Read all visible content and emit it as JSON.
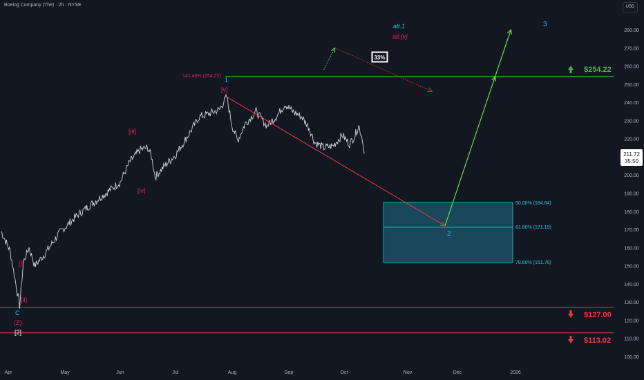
{
  "header": {
    "title": "Boeing Company (The) · 2h · NYSE"
  },
  "currency_button": "USD",
  "chart_data": {
    "type": "line",
    "title": "Boeing Company (The) · 2h · NYSE",
    "x_ticks": [
      "Apr",
      "May",
      "Jun",
      "Jul",
      "Aug",
      "Sep",
      "Oct",
      "Nov",
      "Dec",
      "2026"
    ],
    "y_ticks": [
      100,
      110,
      120,
      130,
      140,
      150,
      160,
      170,
      180,
      190,
      200,
      210,
      220,
      230,
      240,
      250,
      260,
      270,
      280
    ],
    "ylim": [
      96,
      288
    ],
    "price_anchors": [
      {
        "x": "Mar 28",
        "y": 169
      },
      {
        "x": "Apr 2",
        "y": 158
      },
      {
        "x": "Apr 5",
        "y": 140
      },
      {
        "x": "Apr 7",
        "y": 128
      },
      {
        "x": "Apr 9",
        "y": 152
      },
      {
        "x": "Apr 12",
        "y": 160
      },
      {
        "x": "Apr 15",
        "y": 150
      },
      {
        "x": "Apr 20",
        "y": 156
      },
      {
        "x": "Apr 28",
        "y": 168
      },
      {
        "x": "May 6",
        "y": 176
      },
      {
        "x": "May 12",
        "y": 181
      },
      {
        "x": "May 20",
        "y": 187
      },
      {
        "x": "Jun 1",
        "y": 196
      },
      {
        "x": "Jun 6",
        "y": 207
      },
      {
        "x": "Jun 12",
        "y": 214
      },
      {
        "x": "Jun 16",
        "y": 215
      },
      {
        "x": "Jun 18",
        "y": 210
      },
      {
        "x": "Jun 20",
        "y": 199
      },
      {
        "x": "Jun 25",
        "y": 205
      },
      {
        "x": "Jul 1",
        "y": 211
      },
      {
        "x": "Jul 8",
        "y": 222
      },
      {
        "x": "Jul 14",
        "y": 232
      },
      {
        "x": "Jul 20",
        "y": 234
      },
      {
        "x": "Jul 25",
        "y": 236
      },
      {
        "x": "Jul 29",
        "y": 243
      },
      {
        "x": "Aug 1",
        "y": 227
      },
      {
        "x": "Aug 4",
        "y": 219
      },
      {
        "x": "Aug 8",
        "y": 228
      },
      {
        "x": "Aug 14",
        "y": 235
      },
      {
        "x": "Aug 20",
        "y": 227
      },
      {
        "x": "Aug 25",
        "y": 232
      },
      {
        "x": "Aug 30",
        "y": 239
      },
      {
        "x": "Sep 3",
        "y": 235
      },
      {
        "x": "Sep 8",
        "y": 232
      },
      {
        "x": "Sep 12",
        "y": 226
      },
      {
        "x": "Sep 15",
        "y": 218
      },
      {
        "x": "Sep 20",
        "y": 215
      },
      {
        "x": "Sep 25",
        "y": 216
      },
      {
        "x": "Sep 30",
        "y": 222
      },
      {
        "x": "Oct 4",
        "y": 217
      },
      {
        "x": "Oct 7",
        "y": 222
      },
      {
        "x": "Oct 9",
        "y": 227
      },
      {
        "x": "Oct 11",
        "y": 220
      },
      {
        "x": "Oct 12",
        "y": 211.72
      }
    ],
    "levels": [
      {
        "label": "$254.22",
        "value": 254.22,
        "color": "#4caf50",
        "arrow": "up"
      },
      {
        "label": "$127.00",
        "value": 127.0,
        "color": "#f23645",
        "arrow": "down"
      },
      {
        "label": "$113.02",
        "value": 113.02,
        "color": "#f23645",
        "arrow": "down"
      }
    ],
    "target_zone": {
      "top": 184.84,
      "bottom": 151.76,
      "mid": 171.19,
      "labels": [
        "50.00% (184.84)",
        "61.80% (171.19)",
        "78.60% (151.76)"
      ]
    },
    "fib_extension_label": "141.40% (254.22)",
    "projections": [
      {
        "name": "red",
        "from": {
          "x": "Jul 29",
          "y": 243
        },
        "to": {
          "x": "Nov 25",
          "y": 172
        }
      },
      {
        "name": "green",
        "from": {
          "x": "Nov 25",
          "y": 172
        },
        "to": {
          "x": "Dec 31",
          "y": 280
        }
      },
      {
        "name": "alt-up",
        "from": {
          "x": "Sep 20",
          "y": 258
        },
        "to": {
          "x": "Sep 26",
          "y": 270
        }
      },
      {
        "name": "alt-down",
        "from": {
          "x": "Sep 26",
          "y": 270
        },
        "to": {
          "x": "Nov 18",
          "y": 246
        }
      }
    ],
    "probability_label": "33%",
    "wave_labels": [
      {
        "text": "alt.1",
        "color": "#26c6da"
      },
      {
        "text": "alt.[v]",
        "color": "#e91e63"
      },
      {
        "text": "3",
        "color": "#26c6da"
      },
      {
        "text": "1",
        "color": "#26c6da"
      },
      {
        "text": "[v]",
        "color": "#e91e63"
      },
      {
        "text": "[iii]",
        "color": "#e91e63"
      },
      {
        "text": "[iv]",
        "color": "#e91e63"
      },
      {
        "text": "2",
        "color": "#26c6da"
      },
      {
        "text": "[i]",
        "color": "#e91e63"
      },
      {
        "text": "[ii]",
        "color": "#e91e63"
      },
      {
        "text": "C",
        "color": "#26c6da"
      },
      {
        "text": "(Z)",
        "color": "#e91e63"
      },
      {
        "text": "[2]",
        "color": "#ffffff"
      }
    ],
    "last_price": "211.72",
    "countdown": "35:50",
    "grid": false
  }
}
